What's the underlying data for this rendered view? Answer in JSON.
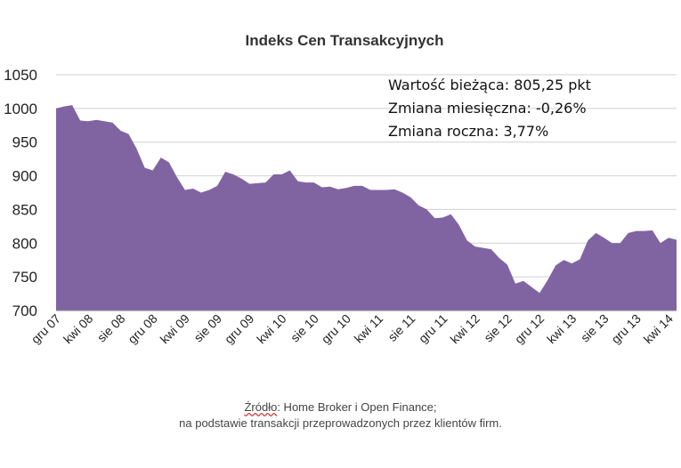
{
  "chart_data": {
    "type": "area",
    "title": "Indeks Cen Transakcyjnych",
    "xlabel": "",
    "ylabel": "",
    "ylim": [
      700,
      1050
    ],
    "yticks": [
      "700",
      "750",
      "800",
      "850",
      "900",
      "950",
      "1000",
      "1050"
    ],
    "grid": true,
    "fill_color": "#8064a2",
    "x_tick_labels": [
      "gru 07",
      "kwi 08",
      "sie 08",
      "gru 08",
      "kwi 09",
      "sie 09",
      "gru 09",
      "kwi 10",
      "sie 10",
      "gru 10",
      "kwi 11",
      "sie 11",
      "gru 11",
      "kwi 12",
      "sie 12",
      "gru 12",
      "kwi 13",
      "sie 13",
      "gru 13",
      "kwi 14"
    ],
    "x": [
      "gru 07",
      "sty 08",
      "lut 08",
      "mar 08",
      "kwi 08",
      "maj 08",
      "cze 08",
      "lip 08",
      "sie 08",
      "wrz 08",
      "paź 08",
      "lis 08",
      "gru 08",
      "sty 09",
      "lut 09",
      "mar 09",
      "kwi 09",
      "maj 09",
      "cze 09",
      "lip 09",
      "sie 09",
      "wrz 09",
      "paź 09",
      "lis 09",
      "gru 09",
      "sty 10",
      "lut 10",
      "mar 10",
      "kwi 10",
      "maj 10",
      "cze 10",
      "lip 10",
      "sie 10",
      "wrz 10",
      "paź 10",
      "lis 10",
      "gru 10",
      "sty 11",
      "lut 11",
      "mar 11",
      "kwi 11",
      "maj 11",
      "cze 11",
      "lip 11",
      "sie 11",
      "wrz 11",
      "paź 11",
      "lis 11",
      "gru 11",
      "sty 12",
      "lut 12",
      "mar 12",
      "kwi 12",
      "maj 12",
      "cze 12",
      "lip 12",
      "sie 12",
      "wrz 12",
      "paź 12",
      "lis 12",
      "gru 12",
      "sty 13",
      "lut 13",
      "mar 13",
      "kwi 13",
      "maj 13",
      "cze 13",
      "lip 13",
      "sie 13",
      "wrz 13",
      "paź 13",
      "lis 13",
      "gru 13",
      "sty 14",
      "lut 14",
      "mar 14",
      "kwi 14",
      "maj 14"
    ],
    "values": [
      1000,
      1003,
      1005,
      982,
      981,
      983,
      981,
      979,
      967,
      962,
      940,
      912,
      908,
      927,
      920,
      898,
      879,
      881,
      875,
      879,
      885,
      906,
      902,
      896,
      888,
      889,
      890,
      902,
      902,
      908,
      892,
      890,
      890,
      883,
      884,
      880,
      882,
      885,
      885,
      879,
      879,
      879,
      880,
      875,
      868,
      856,
      850,
      837,
      838,
      843,
      827,
      804,
      795,
      793,
      791,
      778,
      768,
      740,
      744,
      735,
      726,
      745,
      767,
      775,
      770,
      776,
      804,
      815,
      808,
      800,
      800,
      815,
      818,
      818,
      819,
      800,
      808,
      805
    ]
  },
  "info_box": {
    "current_value": "Wartość bieżąca: 805,25 pkt",
    "monthly_change": "Zmiana miesięczna: -0,26%",
    "yearly_change": "Zmiana roczna: 3,77%"
  },
  "source": {
    "label": "Źródło",
    "text": ": Home Broker i Open Finance;",
    "line2": "na podstawie transakcji przeprowadzonych przez klientów firm."
  }
}
